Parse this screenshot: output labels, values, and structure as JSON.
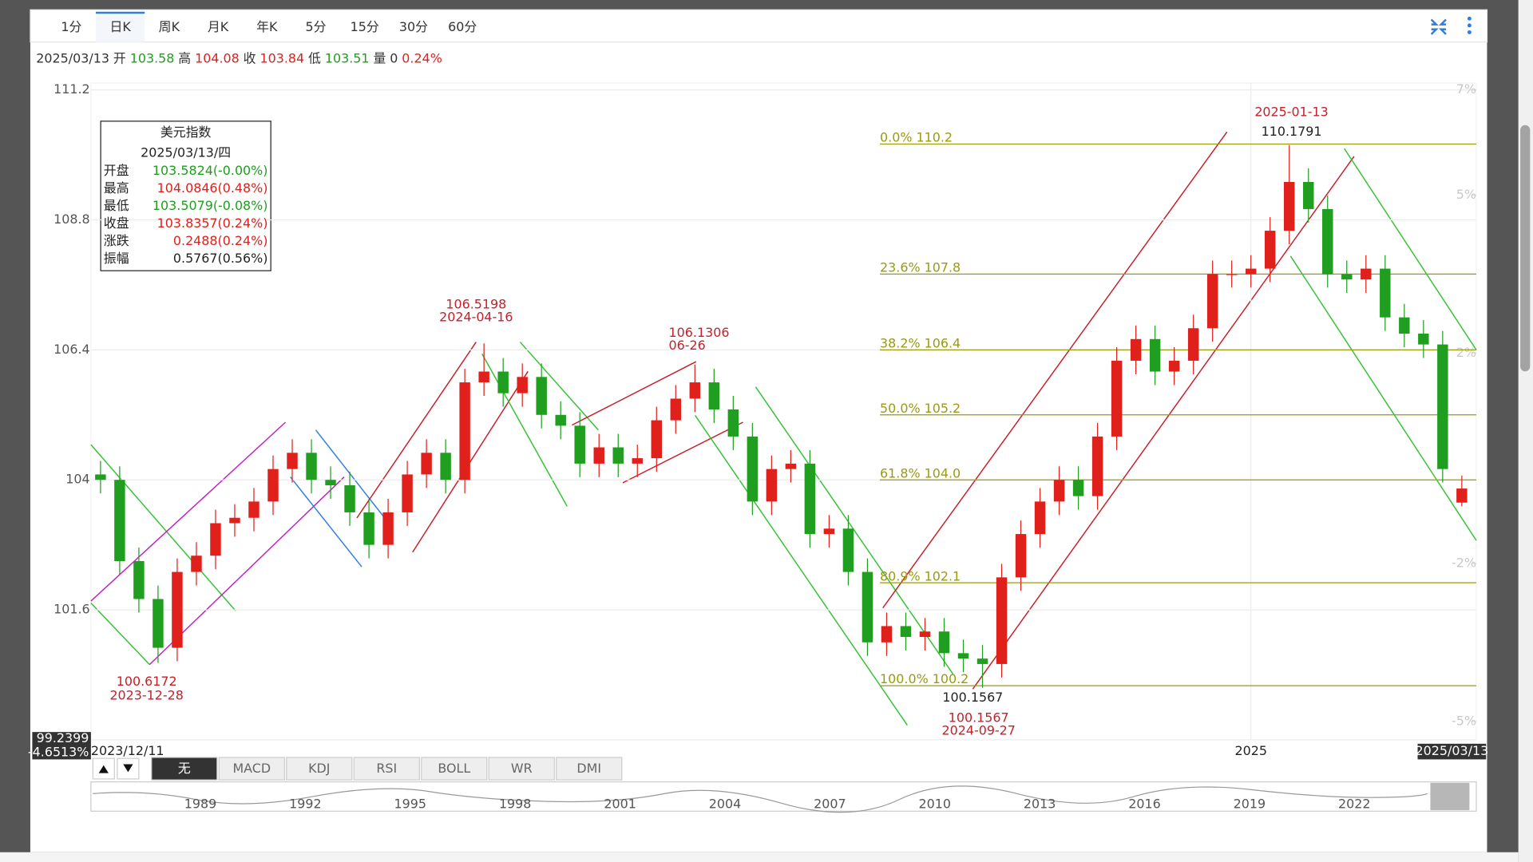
{
  "tabs": [
    "1分",
    "日K",
    "周K",
    "月K",
    "年K",
    "5分",
    "15分",
    "30分",
    "60分"
  ],
  "active_tab": "日K",
  "quote": {
    "date": "2025/03/13",
    "items": [
      {
        "label": "开",
        "value": "103.58"
      },
      {
        "label": "高",
        "value": "104.08"
      },
      {
        "label": "收",
        "value": "103.84"
      },
      {
        "label": "低",
        "value": "103.51"
      },
      {
        "label": "量",
        "value": "0"
      },
      {
        "value": "0.24%"
      }
    ]
  },
  "tooltip": {
    "title": "美元指数",
    "date": "2025/03/13/四",
    "rows": [
      {
        "label": "开盘",
        "value": "103.5824(-0.00%)"
      },
      {
        "label": "最高",
        "value": "104.0846(0.48%)"
      },
      {
        "label": "最低",
        "value": "103.5079(-0.08%)"
      },
      {
        "label": "收盘",
        "value": "103.8357(0.24%)"
      },
      {
        "label": "涨跌",
        "value": "0.2488(0.24%)"
      },
      {
        "label": "振幅",
        "value": "0.5767(0.56%)"
      }
    ]
  },
  "chart_data": {
    "type": "candlestick",
    "categories": [
      "2023/12/11",
      null,
      null,
      null,
      null,
      null,
      null,
      null,
      null,
      null,
      null,
      null,
      null,
      null,
      null,
      null,
      null,
      null,
      null,
      null,
      null,
      null,
      null,
      null,
      null,
      null,
      null,
      null,
      null,
      null,
      null,
      null,
      null,
      null,
      null,
      null,
      null,
      null,
      null,
      null,
      null,
      null,
      null,
      null,
      null,
      null,
      null,
      null,
      null,
      null,
      null,
      null,
      null,
      null,
      null,
      null,
      null,
      null,
      null,
      null,
      "2025",
      null,
      null,
      null,
      null,
      null,
      null,
      null,
      null,
      null,
      null,
      "2025/03/13"
    ],
    "open": [
      104.1,
      104.0,
      102.5,
      101.8,
      100.9,
      102.3,
      102.6,
      103.2,
      103.3,
      103.6,
      104.2,
      104.5,
      104.0,
      103.9,
      103.4,
      102.8,
      103.4,
      104.1,
      104.5,
      104.0,
      105.8,
      106.0,
      105.6,
      105.9,
      105.2,
      105.0,
      104.3,
      104.6,
      104.3,
      104.4,
      105.1,
      105.5,
      105.8,
      105.3,
      104.8,
      103.6,
      104.2,
      104.3,
      103.0,
      103.1,
      102.3,
      101.0,
      101.3,
      101.1,
      101.2,
      100.8,
      100.7,
      100.6,
      102.2,
      103.0,
      103.6,
      104.0,
      103.7,
      104.8,
      106.2,
      106.6,
      106.0,
      106.2,
      106.8,
      107.8,
      107.8,
      107.9,
      108.6,
      109.5,
      109.0,
      107.8,
      107.7,
      107.9,
      107.0,
      106.7,
      106.5,
      103.58
    ],
    "high": [
      104.35,
      104.25,
      102.75,
      102.05,
      102.55,
      102.85,
      103.45,
      103.55,
      103.85,
      104.45,
      104.75,
      104.75,
      104.25,
      104.15,
      103.65,
      103.65,
      104.35,
      104.75,
      104.75,
      106.05,
      106.52,
      106.25,
      106.15,
      106.15,
      105.45,
      105.25,
      104.85,
      104.85,
      104.65,
      105.35,
      105.75,
      106.13,
      106.05,
      105.55,
      105.05,
      104.45,
      104.55,
      104.55,
      103.35,
      103.35,
      102.55,
      101.55,
      101.55,
      101.45,
      101.45,
      101.05,
      100.95,
      102.45,
      103.25,
      103.85,
      104.25,
      104.25,
      105.05,
      106.45,
      106.85,
      106.85,
      106.45,
      107.05,
      108.05,
      108.05,
      108.15,
      108.85,
      110.18,
      109.75,
      109.25,
      108.05,
      108.15,
      108.15,
      107.25,
      106.95,
      106.75,
      104.08
    ],
    "low": [
      103.75,
      102.25,
      101.55,
      100.62,
      100.65,
      102.05,
      102.35,
      102.95,
      103.05,
      103.35,
      103.95,
      103.75,
      103.65,
      103.15,
      102.55,
      102.55,
      103.15,
      103.85,
      103.75,
      103.75,
      105.55,
      105.35,
      105.35,
      104.95,
      104.75,
      104.05,
      104.05,
      104.05,
      104.05,
      104.15,
      104.85,
      105.25,
      105.05,
      104.55,
      103.35,
      103.35,
      103.95,
      102.75,
      102.75,
      102.05,
      100.75,
      100.75,
      100.85,
      100.85,
      100.55,
      100.45,
      100.16,
      100.35,
      101.95,
      102.75,
      103.35,
      103.45,
      103.45,
      104.55,
      105.95,
      105.75,
      105.75,
      105.95,
      106.55,
      107.55,
      107.55,
      107.65,
      108.35,
      108.75,
      107.55,
      107.45,
      107.45,
      106.75,
      106.45,
      106.25,
      103.95,
      103.51
    ],
    "close": [
      104.0,
      102.5,
      101.8,
      100.9,
      102.3,
      102.6,
      103.2,
      103.3,
      103.6,
      104.2,
      104.5,
      104.0,
      103.9,
      103.4,
      102.8,
      103.4,
      104.1,
      104.5,
      104.0,
      105.8,
      106.0,
      105.6,
      105.9,
      105.2,
      105.0,
      104.3,
      104.6,
      104.3,
      104.4,
      105.1,
      105.5,
      105.8,
      105.3,
      104.8,
      103.6,
      104.2,
      104.3,
      103.0,
      103.1,
      102.3,
      101.0,
      101.3,
      101.1,
      101.2,
      100.8,
      100.7,
      100.6,
      102.2,
      103.0,
      103.6,
      104.0,
      103.7,
      104.8,
      106.2,
      106.6,
      106.0,
      106.2,
      106.8,
      107.8,
      107.8,
      107.9,
      108.6,
      109.5,
      109.0,
      107.8,
      107.7,
      107.9,
      107.0,
      106.7,
      106.5,
      104.2,
      103.84
    ],
    "up_color": "#e0201b",
    "down_color": "#1f9e1f",
    "ylim": [
      99.2,
      111.2
    ],
    "yticks": [
      99.2,
      101.6,
      104,
      106.4,
      108.8,
      111.2
    ],
    "y2lim": [
      -5.35,
      7
    ],
    "y2ticks": [
      {
        "value": -5,
        "label": "-5%"
      },
      {
        "value": -2,
        "label": "-2%"
      },
      {
        "value": 2,
        "label": "2%"
      },
      {
        "value": 5,
        "label": "5%"
      },
      {
        "value": 7,
        "label": "7%"
      }
    ],
    "grid": true,
    "fib_color": "#9a9a10",
    "fib_levels": [
      {
        "value": 110.2,
        "label": "0.0% 110.2"
      },
      {
        "value": 107.8,
        "label": "23.6% 107.8"
      },
      {
        "value": 106.4,
        "label": "38.2% 106.4"
      },
      {
        "value": 105.2,
        "label": "50.0% 105.2"
      },
      {
        "value": 104.0,
        "label": "61.8% 104.0"
      },
      {
        "value": 102.1,
        "label": "80.9% 102.1"
      },
      {
        "value": 100.2,
        "label": "100.0% 100.2"
      }
    ],
    "annotations": [
      {
        "value": 100.6172,
        "date": "2023-12-28"
      },
      {
        "value": 106.5198,
        "date": "2024-04-16"
      },
      {
        "value": 106.1306,
        "date": "06-26"
      },
      {
        "value": 100.1567,
        "date": "2024-09-27"
      },
      {
        "value": 110.1791,
        "date": "2025-01-13"
      }
    ],
    "cursor_price": "99.2399",
    "cursor_pct": "-4.6513%"
  },
  "indicator_tabs": [
    "无",
    "MACD",
    "KDJ",
    "RSI",
    "BOLL",
    "WR",
    "DMI"
  ],
  "navigator": {
    "years": [
      1989,
      1992,
      1995,
      1998,
      2001,
      2004,
      2007,
      2010,
      2013,
      2016,
      2019,
      2022
    ]
  }
}
